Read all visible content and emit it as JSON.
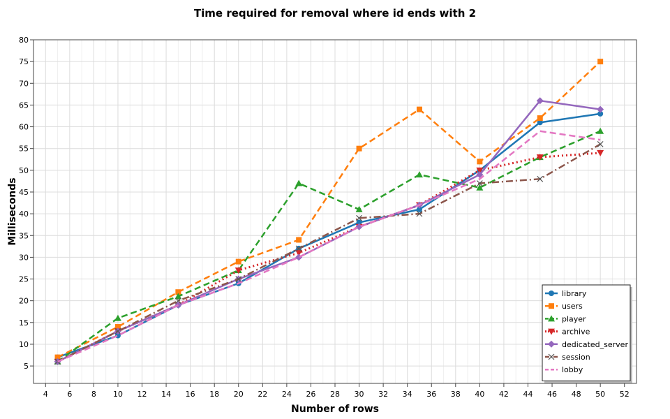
{
  "chart_data": {
    "type": "line",
    "title": "Time required for removal where id ends with 2",
    "xlabel": "Number of rows",
    "ylabel": "Milliseconds",
    "xlim": [
      3,
      53
    ],
    "ylim": [
      1,
      80
    ],
    "x_ticks": [
      4,
      6,
      8,
      10,
      12,
      14,
      16,
      18,
      20,
      22,
      24,
      26,
      28,
      30,
      32,
      34,
      36,
      38,
      40,
      42,
      44,
      46,
      48,
      50,
      52
    ],
    "y_ticks": [
      5,
      10,
      15,
      20,
      25,
      30,
      35,
      40,
      45,
      50,
      55,
      60,
      65,
      70,
      75,
      80
    ],
    "grid": true,
    "legend_position": "bottom-right",
    "x": [
      5,
      10,
      15,
      20,
      25,
      30,
      35,
      40,
      45,
      50
    ],
    "series": [
      {
        "name": "library",
        "color": "#1f77b4",
        "dash": "solid",
        "marker": "circle",
        "values": [
          7,
          12,
          19,
          24,
          32,
          38,
          41,
          50,
          61,
          63
        ]
      },
      {
        "name": "users",
        "color": "#ff7f0e",
        "dash": "dashed",
        "marker": "square",
        "values": [
          7,
          14,
          22,
          29,
          34,
          55,
          64,
          52,
          62,
          75
        ]
      },
      {
        "name": "player",
        "color": "#2ca02c",
        "dash": "dashed",
        "marker": "triangle-up",
        "values": [
          6,
          16,
          21,
          27,
          47,
          41,
          49,
          46,
          53,
          59
        ]
      },
      {
        "name": "archive",
        "color": "#d62728",
        "dash": "dotted",
        "marker": "triangle-down",
        "values": [
          6,
          13,
          19,
          27,
          31,
          37,
          42,
          50,
          53,
          54
        ]
      },
      {
        "name": "dedicated_server",
        "color": "#9467bd",
        "dash": "solid",
        "marker": "diamond",
        "values": [
          6,
          13,
          19,
          25,
          30,
          37,
          42,
          49,
          66,
          64
        ]
      },
      {
        "name": "session",
        "color": "#8c564b",
        "dash": "dashdot",
        "marker": "x",
        "values": [
          6,
          13,
          20,
          25,
          32,
          39,
          40,
          47,
          48,
          56
        ]
      },
      {
        "name": "lobby",
        "color": "#e377c2",
        "dash": "dashed",
        "marker": "none",
        "values": [
          6,
          12,
          19,
          24,
          30,
          37,
          42,
          48,
          59,
          57
        ]
      }
    ]
  }
}
